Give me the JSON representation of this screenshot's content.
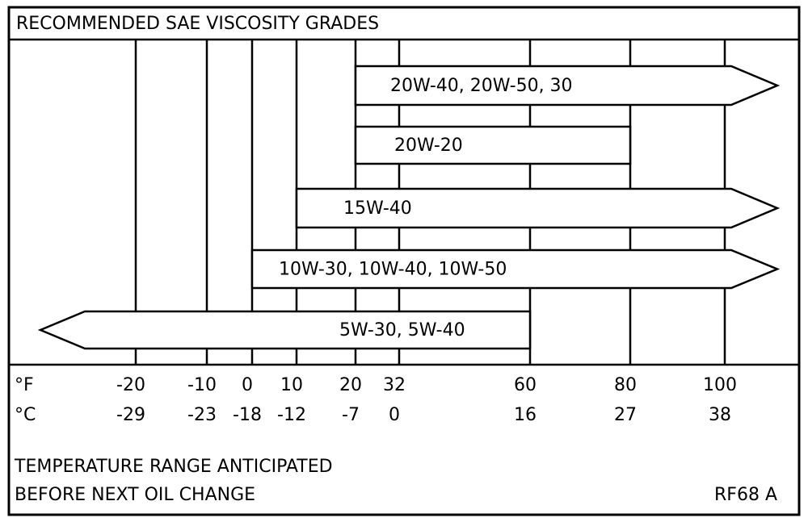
{
  "title": "RECOMMENDED SAE VISCOSITY GRADES",
  "unit_f": "°F",
  "unit_c": "°C",
  "ticks": [
    {
      "f": -20,
      "c": -29
    },
    {
      "f": -10,
      "c": -23
    },
    {
      "f": 0,
      "c": -18
    },
    {
      "f": 10,
      "c": -12
    },
    {
      "f": 20,
      "c": -7
    },
    {
      "f": 32,
      "c": 0
    },
    {
      "f": 60,
      "c": 16
    },
    {
      "f": 80,
      "c": 27
    },
    {
      "f": 100,
      "c": 38
    }
  ],
  "grades": [
    {
      "label": "20W-40, 20W-50, 30",
      "from": 20,
      "to": null
    },
    {
      "label": "20W-20",
      "from": 20,
      "to": 80
    },
    {
      "label": "15W-40",
      "from": 10,
      "to": null
    },
    {
      "label": "10W-30, 10W-40, 10W-50",
      "from": 0,
      "to": null
    },
    {
      "label": "5W-30, 5W-40",
      "from": null,
      "to": 60
    }
  ],
  "footer": [
    "TEMPERATURE RANGE ANTICIPATED",
    "BEFORE NEXT OIL CHANGE"
  ],
  "code": "RF68 A"
}
